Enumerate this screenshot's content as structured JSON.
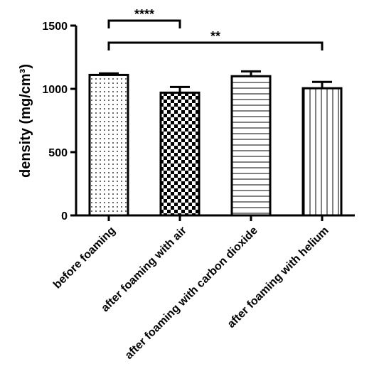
{
  "chart_data": {
    "type": "bar",
    "ylabel": "density (mg/cm³)",
    "ylim": [
      0,
      1500
    ],
    "yticks": [
      0,
      500,
      1000,
      1500
    ],
    "categories": [
      "before foaming",
      "after foaming with air",
      "after foaming with carbon dioxide",
      "after foaming with helium"
    ],
    "values": [
      1110,
      970,
      1100,
      1005
    ],
    "errors": [
      12,
      45,
      38,
      50
    ],
    "patterns": [
      "dots",
      "checkerboard",
      "horizontal-lines",
      "vertical-lines"
    ],
    "grid": false,
    "significance": [
      {
        "from": 0,
        "to": 1,
        "label": "****"
      },
      {
        "from": 0,
        "to": 3,
        "label": "**"
      }
    ]
  }
}
